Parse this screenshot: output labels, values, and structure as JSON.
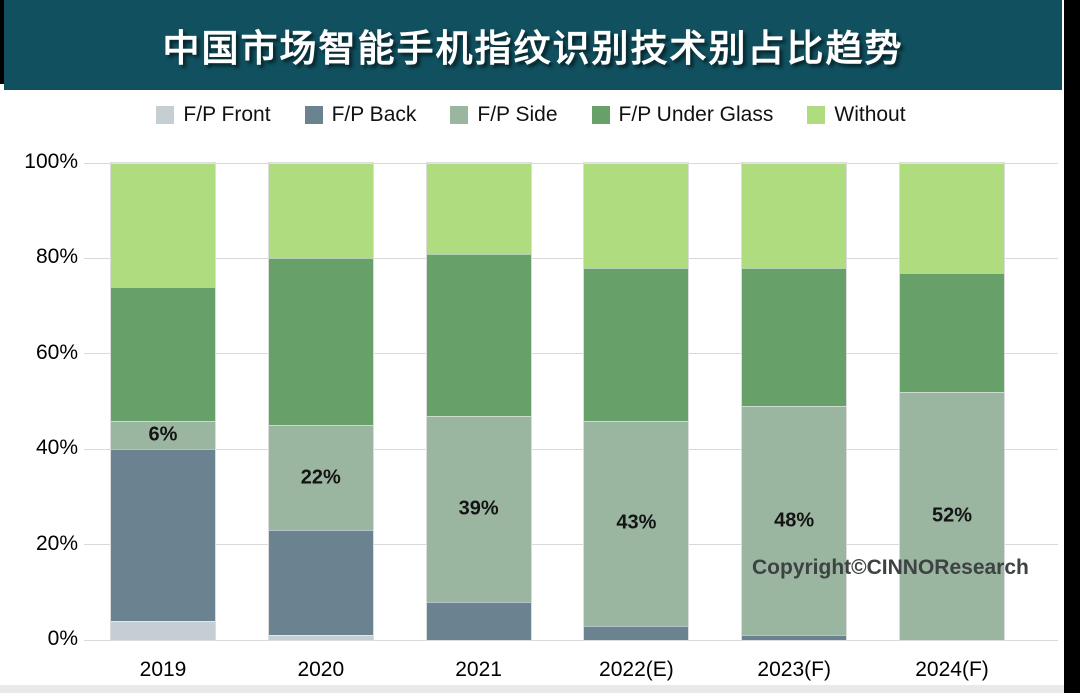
{
  "title": {
    "text": "中国市场智能手机指纹识别技术别占比趋势"
  },
  "copyright": "Copyright©CINNOResearch",
  "colors": {
    "title_bg": "#10505f",
    "title_text": "#ffffff",
    "front": "#c4ced3",
    "back": "#6b8391",
    "side": "#9ab5a0",
    "under_glass": "#68a069",
    "without": "#aedc7f",
    "gridline": "#d9d9d9",
    "axis_text": "#000000",
    "copyright_text": "#3d4243"
  },
  "chart_data": {
    "type": "bar",
    "stacked": true,
    "title": "中国市场智能手机指纹识别技术别占比趋势",
    "categories": [
      "2019",
      "2020",
      "2021",
      "2022(E)",
      "2023(F)",
      "2024(F)"
    ],
    "series": [
      {
        "name": "F/P Front",
        "color_key": "front",
        "values": [
          4,
          1,
          0,
          0,
          0,
          0
        ]
      },
      {
        "name": "F/P Back",
        "color_key": "back",
        "values": [
          36,
          22,
          8,
          3,
          1,
          0
        ]
      },
      {
        "name": "F/P Side",
        "color_key": "side",
        "values": [
          6,
          22,
          39,
          43,
          48,
          52
        ],
        "labeled": true
      },
      {
        "name": "F/P Under Glass",
        "color_key": "under_glass",
        "values": [
          28,
          35,
          34,
          32,
          29,
          25
        ]
      },
      {
        "name": "Without",
        "color_key": "without",
        "values": [
          26,
          20,
          19,
          22,
          22,
          23
        ]
      }
    ],
    "data_labels": [
      "6%",
      "22%",
      "39%",
      "43%",
      "48%",
      "52%"
    ],
    "y_ticks": [
      {
        "label": "100%",
        "value": 100
      },
      {
        "label": "80%",
        "value": 80
      },
      {
        "label": "60%",
        "value": 60
      },
      {
        "label": "40%",
        "value": 40
      },
      {
        "label": "20%",
        "value": 20
      },
      {
        "label": "0%",
        "value": 0
      }
    ],
    "ylim": [
      0,
      100
    ],
    "xlabel": "",
    "ylabel": "",
    "grid": true,
    "legend_position": "top"
  }
}
